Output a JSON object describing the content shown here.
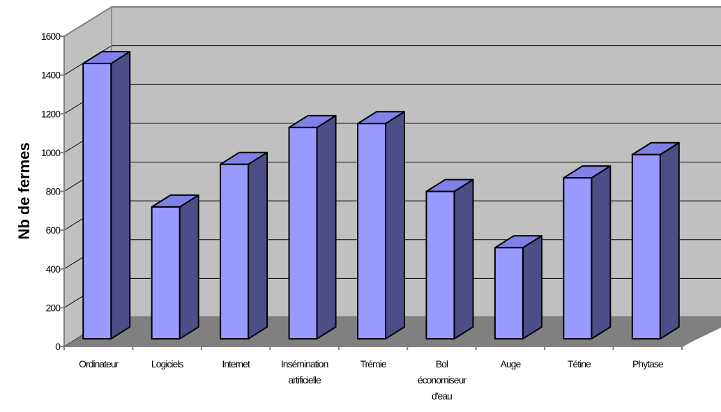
{
  "chart_data": {
    "type": "bar",
    "title": "",
    "xlabel": "",
    "ylabel": "Nb de fermes",
    "ylim": [
      0,
      1600
    ],
    "yticks": [
      0,
      200,
      400,
      600,
      800,
      1000,
      1200,
      1400,
      1600
    ],
    "grid": true,
    "three_d": true,
    "categories": [
      [
        "Ordinateur"
      ],
      [
        "Logiciels"
      ],
      [
        "Internet"
      ],
      [
        "Insémination",
        "artificielle"
      ],
      [
        "Trémie"
      ],
      [
        "Bol",
        "économiseur",
        "d'eau"
      ],
      [
        "Auge"
      ],
      [
        "Tétine"
      ],
      [
        "Phytase"
      ]
    ],
    "values": [
      1420,
      680,
      900,
      1090,
      1110,
      760,
      470,
      830,
      950
    ],
    "colors": {
      "bar_front": "#9999ff",
      "bar_side": "#4d4d88",
      "bar_top": "#8080e6",
      "wall": "#c0c0c0",
      "floor": "#808080",
      "axis": "#808080"
    }
  }
}
